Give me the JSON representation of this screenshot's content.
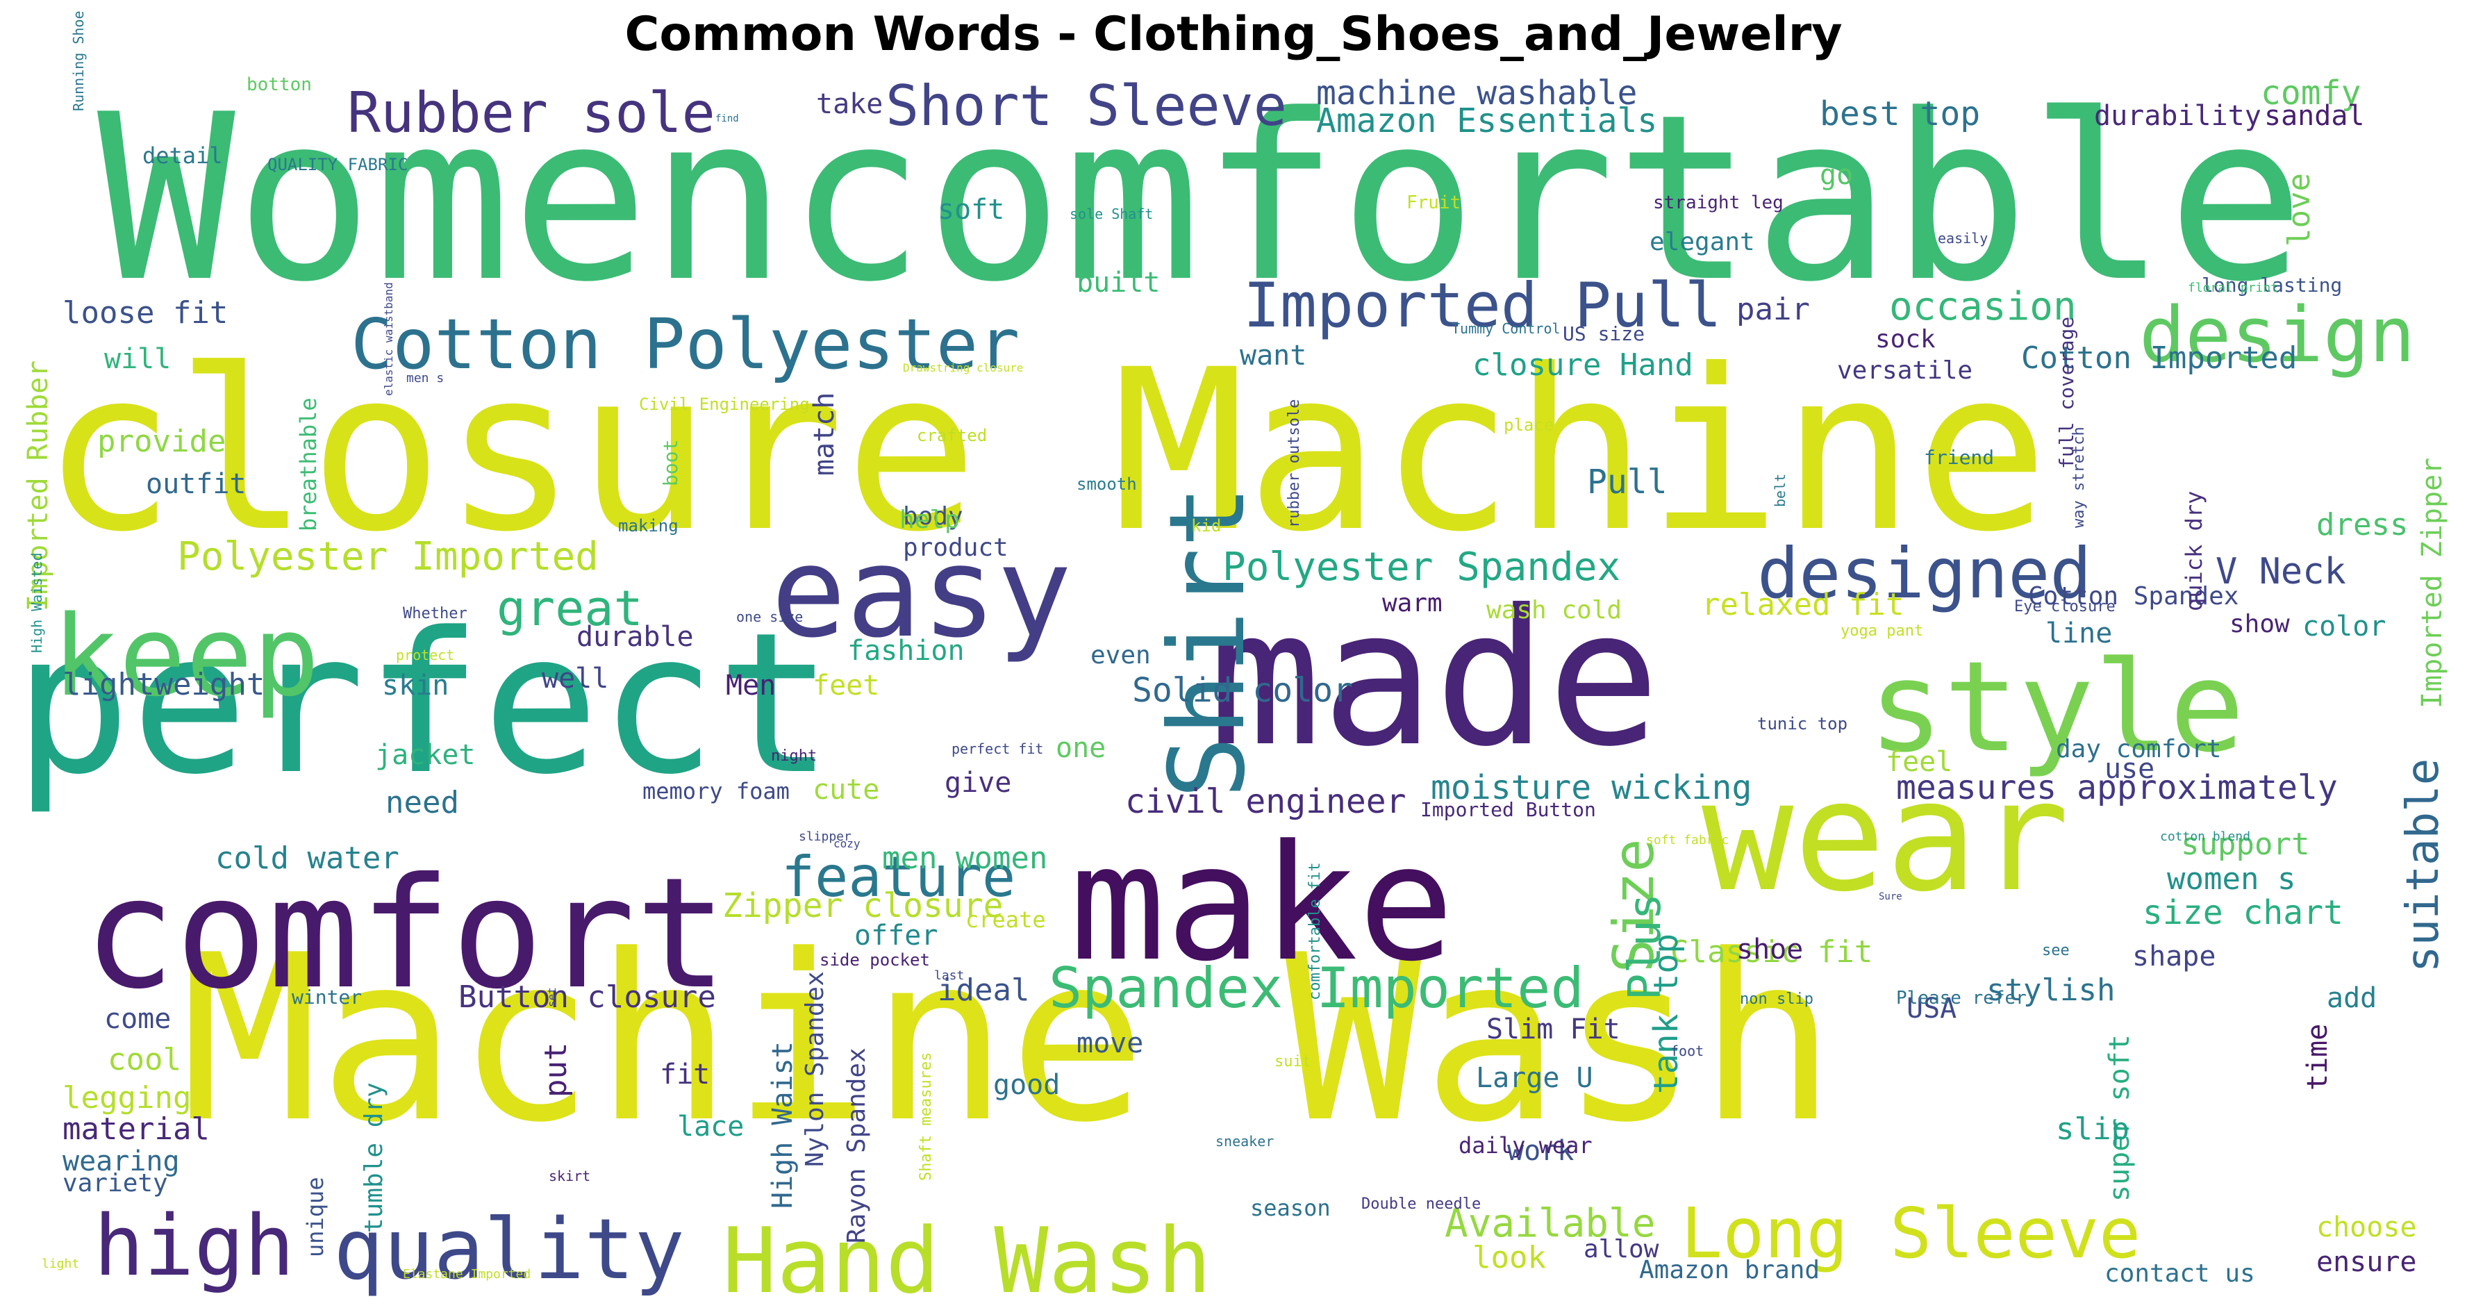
{
  "chart_data": {
    "type": "wordcloud",
    "title": "Common Words - Clothing_Shoes_and_Jewelry",
    "colormap": "viridis",
    "background": "#ffffff",
    "words": [
      {
        "text": "Womencomfortable",
        "color": "#3cbb75"
      },
      {
        "text": "closure Machine",
        "color": "#d8e219"
      },
      {
        "text": "Machine Wash",
        "color": "#dde318"
      },
      {
        "text": "perfect",
        "color": "#20a486"
      },
      {
        "text": "made",
        "color": "#482576"
      },
      {
        "text": "make",
        "color": "#440f5f"
      },
      {
        "text": "comfort",
        "color": "#481a6c"
      },
      {
        "text": "wear",
        "color": "#c2df23"
      },
      {
        "text": "easy",
        "color": "#433e85"
      },
      {
        "text": "keep",
        "color": "#52c569"
      },
      {
        "text": "style",
        "color": "#7ad151"
      },
      {
        "text": "Hand Wash",
        "color": "#b8de29"
      },
      {
        "text": "quality",
        "color": "#3e4989"
      },
      {
        "text": "high",
        "color": "#482878"
      },
      {
        "text": "Shirt",
        "color": "#2a788e"
      },
      {
        "text": "designed",
        "color": "#3b528b"
      },
      {
        "text": "Cotton Polyester",
        "color": "#2c728e"
      },
      {
        "text": "Long Sleeve",
        "color": "#d0e11c"
      },
      {
        "text": "design",
        "color": "#5ec962"
      },
      {
        "text": "Imported Pull",
        "color": "#3b528b"
      },
      {
        "text": "Short Sleeve",
        "color": "#414487"
      },
      {
        "text": "Rubber sole",
        "color": "#46337e"
      },
      {
        "text": "feature",
        "color": "#2a788e"
      },
      {
        "text": "Spandex Imported",
        "color": "#3cbb75"
      },
      {
        "text": "great",
        "color": "#2fb47c"
      },
      {
        "text": "Size",
        "color": "#6ece58"
      },
      {
        "text": "Plus",
        "color": "#35b779"
      },
      {
        "text": "suitable",
        "color": "#31688e"
      },
      {
        "text": "V Neck",
        "color": "#3e4989"
      },
      {
        "text": "Polyester Spandex",
        "color": "#22a884"
      },
      {
        "text": "Polyester Imported",
        "color": "#b5de2b"
      },
      {
        "text": "Available",
        "color": "#95d840"
      },
      {
        "text": "machine washable",
        "color": "#3b528b"
      },
      {
        "text": "Amazon Essentials",
        "color": "#21918c"
      },
      {
        "text": "best top",
        "color": "#2c728e"
      },
      {
        "text": "comfy",
        "color": "#5ec962"
      },
      {
        "text": "durability",
        "color": "#482878"
      },
      {
        "text": "sandal",
        "color": "#481f70"
      },
      {
        "text": "occasion",
        "color": "#35b779"
      },
      {
        "text": "Cotton Imported",
        "color": "#2c728e"
      },
      {
        "text": "closure Hand",
        "color": "#1fa188"
      },
      {
        "text": "Pull",
        "color": "#2c728e"
      },
      {
        "text": "pair",
        "color": "#424086"
      },
      {
        "text": "moisture wicking",
        "color": "#25858e"
      },
      {
        "text": "measures approximately",
        "color": "#453781"
      },
      {
        "text": "civil engineer",
        "color": "#472d7b"
      },
      {
        "text": "Solid color",
        "color": "#31688e"
      },
      {
        "text": "Zipper closure",
        "color": "#b5de2b"
      },
      {
        "text": "size chart",
        "color": "#29af7f"
      },
      {
        "text": "support",
        "color": "#5ec962"
      },
      {
        "text": "women s",
        "color": "#21918c"
      },
      {
        "text": "relaxed fit",
        "color": "#c8e020"
      },
      {
        "text": "Classic fit",
        "color": "#90d743"
      },
      {
        "text": "stylish",
        "color": "#2c728e"
      },
      {
        "text": "cold water",
        "color": "#26828e"
      },
      {
        "text": "men women",
        "color": "#35b779"
      },
      {
        "text": "Button closure",
        "color": "#46337e"
      },
      {
        "text": "ideal",
        "color": "#3b528b"
      },
      {
        "text": "super soft",
        "color": "#27ad81"
      },
      {
        "text": "Imported Zipper",
        "color": "#6ece58"
      },
      {
        "text": "tank top",
        "color": "#1f9e89"
      },
      {
        "text": "Cotton Spandex",
        "color": "#3e4989"
      },
      {
        "text": "lightweight",
        "color": "#38598c"
      },
      {
        "text": "loose fit",
        "color": "#3b528b"
      },
      {
        "text": "provide",
        "color": "#8fd744"
      },
      {
        "text": "outfit",
        "color": "#31688e"
      },
      {
        "text": "will",
        "color": "#2fb47c"
      },
      {
        "text": "Imported Rubber",
        "color": "#9fda3a"
      },
      {
        "text": "durable",
        "color": "#46337e"
      },
      {
        "text": "fashion",
        "color": "#22a884"
      },
      {
        "text": "Men",
        "color": "#482173"
      },
      {
        "text": "feet",
        "color": "#c2df23"
      },
      {
        "text": "well",
        "color": "#404688"
      },
      {
        "text": "skin",
        "color": "#287c8e"
      },
      {
        "text": "jacket",
        "color": "#2db27d"
      },
      {
        "text": "need",
        "color": "#2c728e"
      },
      {
        "text": "cute",
        "color": "#a0da39"
      },
      {
        "text": "give",
        "color": "#472f7d"
      },
      {
        "text": "one",
        "color": "#5ec962"
      },
      {
        "text": "feel",
        "color": "#a2da37"
      },
      {
        "text": "use",
        "color": "#3f4788"
      },
      {
        "text": "day comfort",
        "color": "#2d708e"
      },
      {
        "text": "color",
        "color": "#21918c"
      },
      {
        "text": "line",
        "color": "#2c728e"
      },
      {
        "text": "show",
        "color": "#482475"
      },
      {
        "text": "dress",
        "color": "#4ac16d"
      },
      {
        "text": "warm",
        "color": "#481c6e"
      },
      {
        "text": "wash cold",
        "color": "#a8db34"
      },
      {
        "text": "want",
        "color": "#2c728e"
      },
      {
        "text": "built",
        "color": "#3dbc74"
      },
      {
        "text": "take",
        "color": "#443a83"
      },
      {
        "text": "soft",
        "color": "#21918c"
      },
      {
        "text": "go",
        "color": "#56c667"
      },
      {
        "text": "love",
        "color": "#6ece58"
      },
      {
        "text": "elegant",
        "color": "#287d8e"
      },
      {
        "text": "sock",
        "color": "#482475"
      },
      {
        "text": "versatile",
        "color": "#453781"
      },
      {
        "text": "match",
        "color": "#404588"
      },
      {
        "text": "body",
        "color": "#3b528b"
      },
      {
        "text": "help",
        "color": "#5ec962"
      },
      {
        "text": "product",
        "color": "#3f4889"
      },
      {
        "text": "even",
        "color": "#31688e"
      },
      {
        "text": "detail",
        "color": "#2a788e"
      },
      {
        "text": "material",
        "color": "#482878"
      },
      {
        "text": "wearing",
        "color": "#306a8e"
      },
      {
        "text": "variety",
        "color": "#38598c"
      },
      {
        "text": "legging",
        "color": "#b5de2b"
      },
      {
        "text": "cool",
        "color": "#a2da37"
      },
      {
        "text": "come",
        "color": "#3e4a89"
      },
      {
        "text": "put",
        "color": "#482173"
      },
      {
        "text": "fit",
        "color": "#46327e"
      },
      {
        "text": "lace",
        "color": "#1f9e89"
      },
      {
        "text": "good",
        "color": "#2c728e"
      },
      {
        "text": "move",
        "color": "#38598c"
      },
      {
        "text": "offer",
        "color": "#23898e"
      },
      {
        "text": "create",
        "color": "#c2df23"
      },
      {
        "text": "shoe",
        "color": "#481c6e"
      },
      {
        "text": "shape",
        "color": "#414487"
      },
      {
        "text": "add",
        "color": "#26818e"
      },
      {
        "text": "time",
        "color": "#481769"
      },
      {
        "text": "slip",
        "color": "#1fa088"
      },
      {
        "text": "work",
        "color": "#3b528b"
      },
      {
        "text": "Large U",
        "color": "#2c728e"
      },
      {
        "text": "Slim Fit",
        "color": "#443983"
      },
      {
        "text": "USA",
        "color": "#3e4989"
      },
      {
        "text": "daily wear",
        "color": "#482475"
      },
      {
        "text": "look",
        "color": "#c2df23"
      },
      {
        "text": "allow",
        "color": "#443983"
      },
      {
        "text": "Amazon brand",
        "color": "#31688e"
      },
      {
        "text": "contact us",
        "color": "#2c728e"
      },
      {
        "text": "ensure",
        "color": "#482475"
      },
      {
        "text": "choose",
        "color": "#c2df23"
      },
      {
        "text": "season",
        "color": "#2c728e"
      },
      {
        "text": "unique",
        "color": "#3b528b"
      },
      {
        "text": "High Waist",
        "color": "#31688e"
      },
      {
        "text": "Nylon Spandex",
        "color": "#3e4989"
      },
      {
        "text": "tumble dry",
        "color": "#21918c"
      },
      {
        "text": "Rayon Spandex",
        "color": "#414487"
      },
      {
        "text": "breathable",
        "color": "#3dbc74"
      },
      {
        "text": "boot",
        "color": "#5ec962"
      },
      {
        "text": "full coverage",
        "color": "#46327e"
      },
      {
        "text": "quick dry",
        "color": "#472f7d"
      },
      {
        "text": "long lasting",
        "color": "#3b528b"
      },
      {
        "text": "US size",
        "color": "#3e4989"
      },
      {
        "text": "memory foam",
        "color": "#3e4989"
      },
      {
        "text": "Imported Button",
        "color": "#482878"
      },
      {
        "text": "side pocket",
        "color": "#482173"
      },
      {
        "text": "winter",
        "color": "#2c728e"
      },
      {
        "text": "crafted",
        "color": "#bddf26"
      },
      {
        "text": "smooth",
        "color": "#287c8e"
      },
      {
        "text": "place",
        "color": "#c8e020"
      },
      {
        "text": "friend",
        "color": "#2a788e"
      },
      {
        "text": "kid",
        "color": "#c2df23"
      },
      {
        "text": "making",
        "color": "#2c728e"
      },
      {
        "text": "Whether",
        "color": "#3e4989"
      },
      {
        "text": "protect",
        "color": "#c2df23"
      },
      {
        "text": "botton",
        "color": "#5ec962"
      },
      {
        "text": "QUALITY FABRIC",
        "color": "#2a788e"
      },
      {
        "text": "find",
        "color": "#2c728e"
      },
      {
        "text": "Fruit",
        "color": "#c2df23"
      },
      {
        "text": "sole Shaft",
        "color": "#21918c"
      },
      {
        "text": "straight leg",
        "color": "#482475"
      },
      {
        "text": "easily",
        "color": "#3e4989"
      },
      {
        "text": "floral print",
        "color": "#3dbc74"
      },
      {
        "text": "Tummy Control",
        "color": "#2c728e"
      },
      {
        "text": "Drawstring closure",
        "color": "#c2df23"
      },
      {
        "text": "men s",
        "color": "#3e4989"
      },
      {
        "text": "Civil Engineering",
        "color": "#c2df23"
      },
      {
        "text": "elastic waistband",
        "color": "#3e4989"
      },
      {
        "text": "Running Shoe",
        "color": "#2a788e"
      },
      {
        "text": "High Waisted",
        "color": "#21918c"
      },
      {
        "text": "rubber outsole",
        "color": "#3e4989"
      },
      {
        "text": "belt",
        "color": "#2a788e"
      },
      {
        "text": "way stretch",
        "color": "#3e4989"
      },
      {
        "text": "Eye closure",
        "color": "#3e4989"
      },
      {
        "text": "yoga pant",
        "color": "#c2df23"
      },
      {
        "text": "tunic top",
        "color": "#3e4989"
      },
      {
        "text": "one size",
        "color": "#3e4989"
      },
      {
        "text": "perfect fit",
        "color": "#3e4989"
      },
      {
        "text": "night",
        "color": "#482475"
      },
      {
        "text": "soft fabric",
        "color": "#c2df23"
      },
      {
        "text": "cotton blend",
        "color": "#21918c"
      },
      {
        "text": "see",
        "color": "#2c728e"
      },
      {
        "text": "foot",
        "color": "#3e4989"
      },
      {
        "text": "non slip",
        "color": "#2c728e"
      },
      {
        "text": "Please refer",
        "color": "#2c728e"
      },
      {
        "text": "sneaker",
        "color": "#2c728e"
      },
      {
        "text": "Double needle",
        "color": "#443983"
      },
      {
        "text": "comfortable fit",
        "color": "#21918c"
      },
      {
        "text": "suit",
        "color": "#c2df23"
      },
      {
        "text": "Shaft measures",
        "color": "#c2df23"
      },
      {
        "text": "slipper",
        "color": "#3e4989"
      },
      {
        "text": "cozy",
        "color": "#3e4989"
      },
      {
        "text": "skirt",
        "color": "#482475"
      },
      {
        "text": "light",
        "color": "#c2df23"
      },
      {
        "text": "Elastane Imported",
        "color": "#c2df23"
      },
      {
        "text": "last",
        "color": "#3e4989"
      },
      {
        "text": "set",
        "color": "#3e4989"
      },
      {
        "text": "Sure",
        "color": "#3e4989"
      }
    ]
  }
}
